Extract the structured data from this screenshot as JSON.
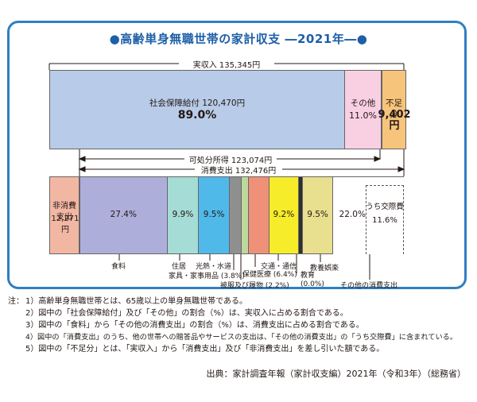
{
  "title": "●高齢単身無職世帯の家計収支 ―2021年―●",
  "income_bar": {
    "label": "実収入 135,345円",
    "segments": [
      {
        "name": "社会保障給付 120,470円",
        "pct": "89.0%",
        "color": "#b8cbe8",
        "value": 89.0
      },
      {
        "name": "その他",
        "pct": "11.0%",
        "color": "#f8d0e2",
        "value": 11.0
      },
      {
        "name": "不足分",
        "pct": "9,402円",
        "color": "#f6c47a",
        "value": 9402
      }
    ]
  },
  "disposable_label": "可処分所得 123,074円",
  "consumption_label": "消費支出 132,476円",
  "expense_bar": {
    "non_consumption": {
      "name": "非消費支出",
      "amount": "12,271円",
      "color": "#f2b7a3"
    },
    "categories": [
      {
        "key": "food",
        "name": "食料",
        "pct": "27.4%",
        "value": 27.4,
        "color": "#aeaedb"
      },
      {
        "key": "housing",
        "name": "住居",
        "pct": "9.9%",
        "value": 9.9,
        "color": "#a5dcd5"
      },
      {
        "key": "utilities",
        "name": "光熱・水道",
        "pct": "9.5%",
        "value": 9.5,
        "color": "#4fb9ea"
      },
      {
        "key": "furniture",
        "name": "家具・家事用品 (3.8%)",
        "pct": "",
        "value": 3.8,
        "color": "#8f8f8f"
      },
      {
        "key": "clothing",
        "name": "被服及び履物 (2.2%)",
        "pct": "",
        "value": 2.2,
        "color": "#bcd99b"
      },
      {
        "key": "health",
        "name": "保健医療 (6.4%)",
        "pct": "",
        "value": 6.4,
        "color": "#ef9178"
      },
      {
        "key": "transport",
        "name": "交通・通信",
        "pct": "9.2%",
        "value": 9.2,
        "color": "#f6ec2a"
      },
      {
        "key": "education",
        "name": "教育 (0.0%)",
        "pct": "",
        "value": 0.0,
        "color": "#2f2f2f"
      },
      {
        "key": "recreation",
        "name": "教養娯楽",
        "pct": "9.5%",
        "value": 9.5,
        "color": "#e8e08e"
      },
      {
        "key": "other",
        "name": "その他の消費支出",
        "pct": "22.0%",
        "value": 22.0,
        "color": "#ffffff"
      }
    ],
    "social_expense": {
      "name": "うち交際費",
      "pct": "11.6%",
      "value": 11.6
    }
  },
  "notes": {
    "prefix": "注：",
    "items": [
      "1）高齢単身無職世帯とは、65歳以上の単身無職世帯である。",
      "2）図中の「社会保障給付」及び「その他」の割合（%）は、実収入に占める割合である。",
      "3）図中の「食料」から「その他の消費支出」の割合（%）は、消費支出に占める割合である。",
      "4）図中の「消費支出」のうち、他の世帯への贈答品やサービスの支出は、「その他の消費支出」の「うち交際費」に含まれている。",
      "5）図中の「不足分」とは、「実収入」から「消費支出」及び「非消費支出」を差し引いた額である。"
    ]
  },
  "source": "出典：家計調査年報（家計収支編）2021年（令和3年）（総務省）",
  "chart_data": {
    "type": "bar",
    "title": "●高齢単身無職世帯の家計収支 ―2021年―●",
    "income": {
      "total_label": "実収入 135,345円",
      "categories": [
        "社会保障給付",
        "その他"
      ],
      "values": [
        89.0,
        11.0
      ],
      "shortfall": "9,402円"
    },
    "expenditure": {
      "total_label": "消費支出 132,476円",
      "categories": [
        "食料",
        "住居",
        "光熱・水道",
        "家具・家事用品",
        "被服及び履物",
        "保健医療",
        "交通・通信",
        "教育",
        "教養娯楽",
        "その他の消費支出"
      ],
      "values": [
        27.4,
        9.9,
        9.5,
        3.8,
        2.2,
        6.4,
        9.2,
        0.0,
        9.5,
        22.0
      ],
      "non_consumption": "12,271円",
      "social_expense_pct": 11.6
    }
  }
}
